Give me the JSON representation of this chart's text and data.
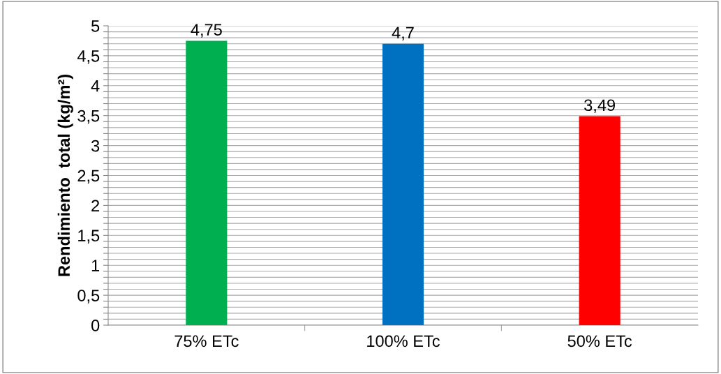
{
  "chart_data": {
    "type": "bar",
    "ylabel": "Rendimiento  total (kg/m²)",
    "categories": [
      "75% ETc",
      "100% ETc",
      "50% ETc"
    ],
    "values": [
      4.75,
      4.7,
      3.49
    ],
    "colors": [
      "#00b050",
      "#0070c0",
      "#ff0000"
    ],
    "value_labels": [
      "4,75",
      "4,7",
      "3,49"
    ],
    "ylim": [
      0,
      5
    ],
    "yticks": [
      0,
      {
        "value": 0.1,
        "label": null
      },
      {
        "value": 0.2,
        "label": null
      },
      {
        "value": 0.3,
        "label": null
      },
      {
        "value": 0.4,
        "label": null
      },
      {
        "value": 0.5,
        "label": "0,5"
      },
      {
        "value": 0.6,
        "label": null
      },
      {
        "value": 0.7,
        "label": null
      },
      {
        "value": 0.8,
        "label": null
      },
      {
        "value": 0.9,
        "label": null
      },
      1,
      {
        "value": 1.1,
        "label": null
      },
      {
        "value": 1.2,
        "label": null
      },
      {
        "value": 1.3,
        "label": null
      },
      {
        "value": 1.4,
        "label": null
      },
      {
        "value": 1.5,
        "label": "1,5"
      },
      {
        "value": 1.6,
        "label": null
      },
      {
        "value": 1.7,
        "label": null
      },
      {
        "value": 1.8,
        "label": null
      },
      {
        "value": 1.9,
        "label": null
      },
      2,
      {
        "value": 2.1,
        "label": null
      },
      {
        "value": 2.2,
        "label": null
      },
      {
        "value": 2.3,
        "label": null
      },
      {
        "value": 2.4,
        "label": null
      },
      {
        "value": 2.5,
        "label": "2,5"
      },
      {
        "value": 2.6,
        "label": null
      },
      {
        "value": 2.7,
        "label": null
      },
      {
        "value": 2.8,
        "label": null
      },
      {
        "value": 2.9,
        "label": null
      },
      3,
      {
        "value": 3.1,
        "label": null
      },
      {
        "value": 3.2,
        "label": null
      },
      {
        "value": 3.3,
        "label": null
      },
      {
        "value": 3.4,
        "label": null
      },
      {
        "value": 3.5,
        "label": "3,5"
      },
      {
        "value": 3.6,
        "label": null
      },
      {
        "value": 3.7,
        "label": null
      },
      {
        "value": 3.8,
        "label": null
      },
      {
        "value": 3.9,
        "label": null
      },
      4,
      {
        "value": 4.1,
        "label": null
      },
      {
        "value": 4.2,
        "label": null
      },
      {
        "value": 4.3,
        "label": null
      },
      {
        "value": 4.4,
        "label": null
      },
      {
        "value": 4.5,
        "label": "4,5"
      },
      {
        "value": 4.6,
        "label": null
      },
      {
        "value": 4.7,
        "label": null
      },
      {
        "value": 4.8,
        "label": null
      },
      {
        "value": 4.9,
        "label": null
      },
      5
    ],
    "grid": "y"
  }
}
